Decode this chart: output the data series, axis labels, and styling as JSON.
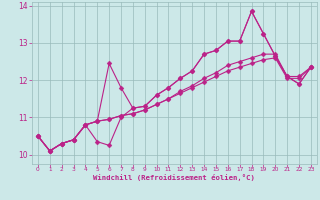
{
  "xlabel": "Windchill (Refroidissement éolien,°C)",
  "bg_color": "#cce8e8",
  "line_color": "#bb2288",
  "grid_color": "#99bbbb",
  "axis_color": "#99bbbb",
  "xlim": [
    -0.5,
    23.5
  ],
  "ylim": [
    9.75,
    14.1
  ],
  "xticks": [
    0,
    1,
    2,
    3,
    4,
    5,
    6,
    7,
    8,
    9,
    10,
    11,
    12,
    13,
    14,
    15,
    16,
    17,
    18,
    19,
    20,
    21,
    22,
    23
  ],
  "yticks": [
    10,
    11,
    12,
    13,
    14
  ],
  "series": [
    [
      10.5,
      10.1,
      10.3,
      10.4,
      10.8,
      10.9,
      12.45,
      11.8,
      11.25,
      11.3,
      11.6,
      11.8,
      12.05,
      12.25,
      12.7,
      12.8,
      13.05,
      13.05,
      13.85,
      13.25,
      12.65,
      12.1,
      11.9,
      12.35
    ],
    [
      10.5,
      10.1,
      10.3,
      10.4,
      10.8,
      10.35,
      10.25,
      11.0,
      11.25,
      11.3,
      11.6,
      11.8,
      12.05,
      12.25,
      12.7,
      12.8,
      13.05,
      13.05,
      13.85,
      13.25,
      12.65,
      12.1,
      11.9,
      12.35
    ],
    [
      10.5,
      10.1,
      10.3,
      10.4,
      10.8,
      10.9,
      10.95,
      11.05,
      11.1,
      11.2,
      11.35,
      11.5,
      11.7,
      11.85,
      12.05,
      12.2,
      12.4,
      12.5,
      12.6,
      12.7,
      12.7,
      12.1,
      12.1,
      12.35
    ],
    [
      10.5,
      10.1,
      10.3,
      10.4,
      10.8,
      10.9,
      10.95,
      11.05,
      11.1,
      11.2,
      11.35,
      11.5,
      11.65,
      11.8,
      11.95,
      12.1,
      12.25,
      12.35,
      12.45,
      12.55,
      12.6,
      12.05,
      12.05,
      12.35
    ]
  ]
}
